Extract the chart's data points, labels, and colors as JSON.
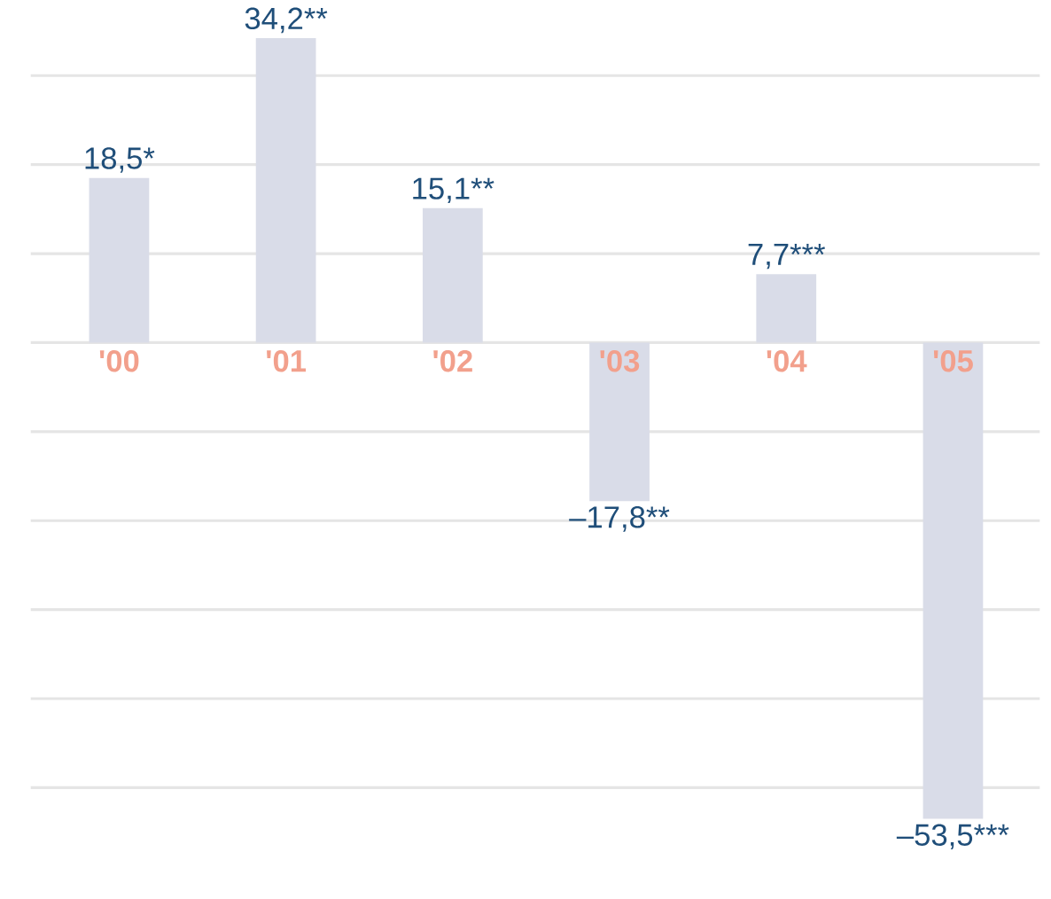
{
  "chart_data": {
    "type": "bar",
    "categories": [
      "'00",
      "'01",
      "'02",
      "'03",
      "'04",
      "'05"
    ],
    "values": [
      18.5,
      34.2,
      15.1,
      -17.8,
      7.7,
      -53.5
    ],
    "value_labels": [
      "18,5*",
      "34,2**",
      "15,1**",
      "–17,8**",
      "7,7***",
      "–53,5***"
    ],
    "color": "#d9dce8",
    "grid": "y"
  }
}
